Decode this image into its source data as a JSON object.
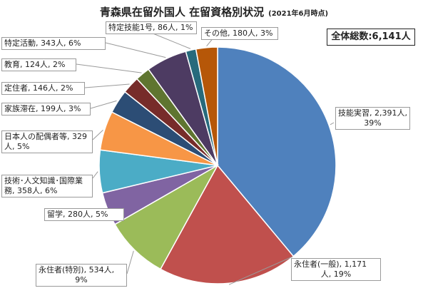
{
  "chart_data": {
    "type": "pie",
    "title": "青森県在留外国人 在留資格別状況",
    "subtitle": "(2021年6月時点)",
    "total_label": "全体総数:6,141人",
    "slices": [
      {
        "category": "技能実習",
        "value": 2391,
        "percent": "39%",
        "label": "技能実習, 2,391人, 39%",
        "color": "#4F81BD"
      },
      {
        "category": "永住者(一般)",
        "value": 1171,
        "percent": "19%",
        "label": "永住者(一般), 1,171人, 19%",
        "color": "#C0504D"
      },
      {
        "category": "永住者(特別)",
        "value": 534,
        "percent": "9%",
        "label": "永住者(特別), 534人, 9%",
        "color": "#9BBB59"
      },
      {
        "category": "留学",
        "value": 280,
        "percent": "5%",
        "label": "留学, 280人, 5%",
        "color": "#8064A2"
      },
      {
        "category": "技術・人文知識・国際業務",
        "value": 358,
        "percent": "6%",
        "label": "技術・人文知識・国際業務, 358人, 6%",
        "color": "#4BACC6"
      },
      {
        "category": "日本人の配偶者等",
        "value": 329,
        "percent": "5%",
        "label": "日本人の配偶者等, 329人, 5%",
        "color": "#F79646"
      },
      {
        "category": "家族滞在",
        "value": 199,
        "percent": "3%",
        "label": "家族滞在, 199人, 3%",
        "color": "#2C4D75"
      },
      {
        "category": "定住者",
        "value": 146,
        "percent": "2%",
        "label": "定住者, 146人, 2%",
        "color": "#772C2A"
      },
      {
        "category": "教育",
        "value": 124,
        "percent": "2%",
        "label": "教育, 124人, 2%",
        "color": "#5F7530"
      },
      {
        "category": "特定活動",
        "value": 343,
        "percent": "6%",
        "label": "特定活動, 343人, 6%",
        "color": "#4D3B62"
      },
      {
        "category": "特定技能1号",
        "value": 86,
        "percent": "1%",
        "label": "特定技能1号, 86人, 1%",
        "color": "#276A7C"
      },
      {
        "category": "その他",
        "value": 180,
        "percent": "3%",
        "label": "その他, 180人, 3%",
        "color": "#B65708"
      }
    ],
    "callout_lines": [
      [
        "技能実習, 2,391人,",
        "39%"
      ],
      [
        "永住者(一般), 1,171",
        "人, 19%"
      ],
      [
        "永住者(特別), 534人,",
        "9%"
      ],
      [
        "留学, 280人, 5%"
      ],
      [
        "技術･人文知識･国際業",
        "務, 358人, 6%"
      ],
      [
        "日本人の配偶者等, 329",
        "人, 5%"
      ],
      [
        "家族滞在, 199人, 3%"
      ],
      [
        "定住者, 146人, 2%"
      ],
      [
        "教育, 124人, 2%"
      ],
      [
        "特定活動, 343人, 6%"
      ],
      [
        "特定技能1号, 86人, 1%"
      ],
      [
        "その他, 180人, 3%"
      ]
    ],
    "start_angle_deg": 0,
    "direction": "clockwise",
    "legend": "none"
  }
}
